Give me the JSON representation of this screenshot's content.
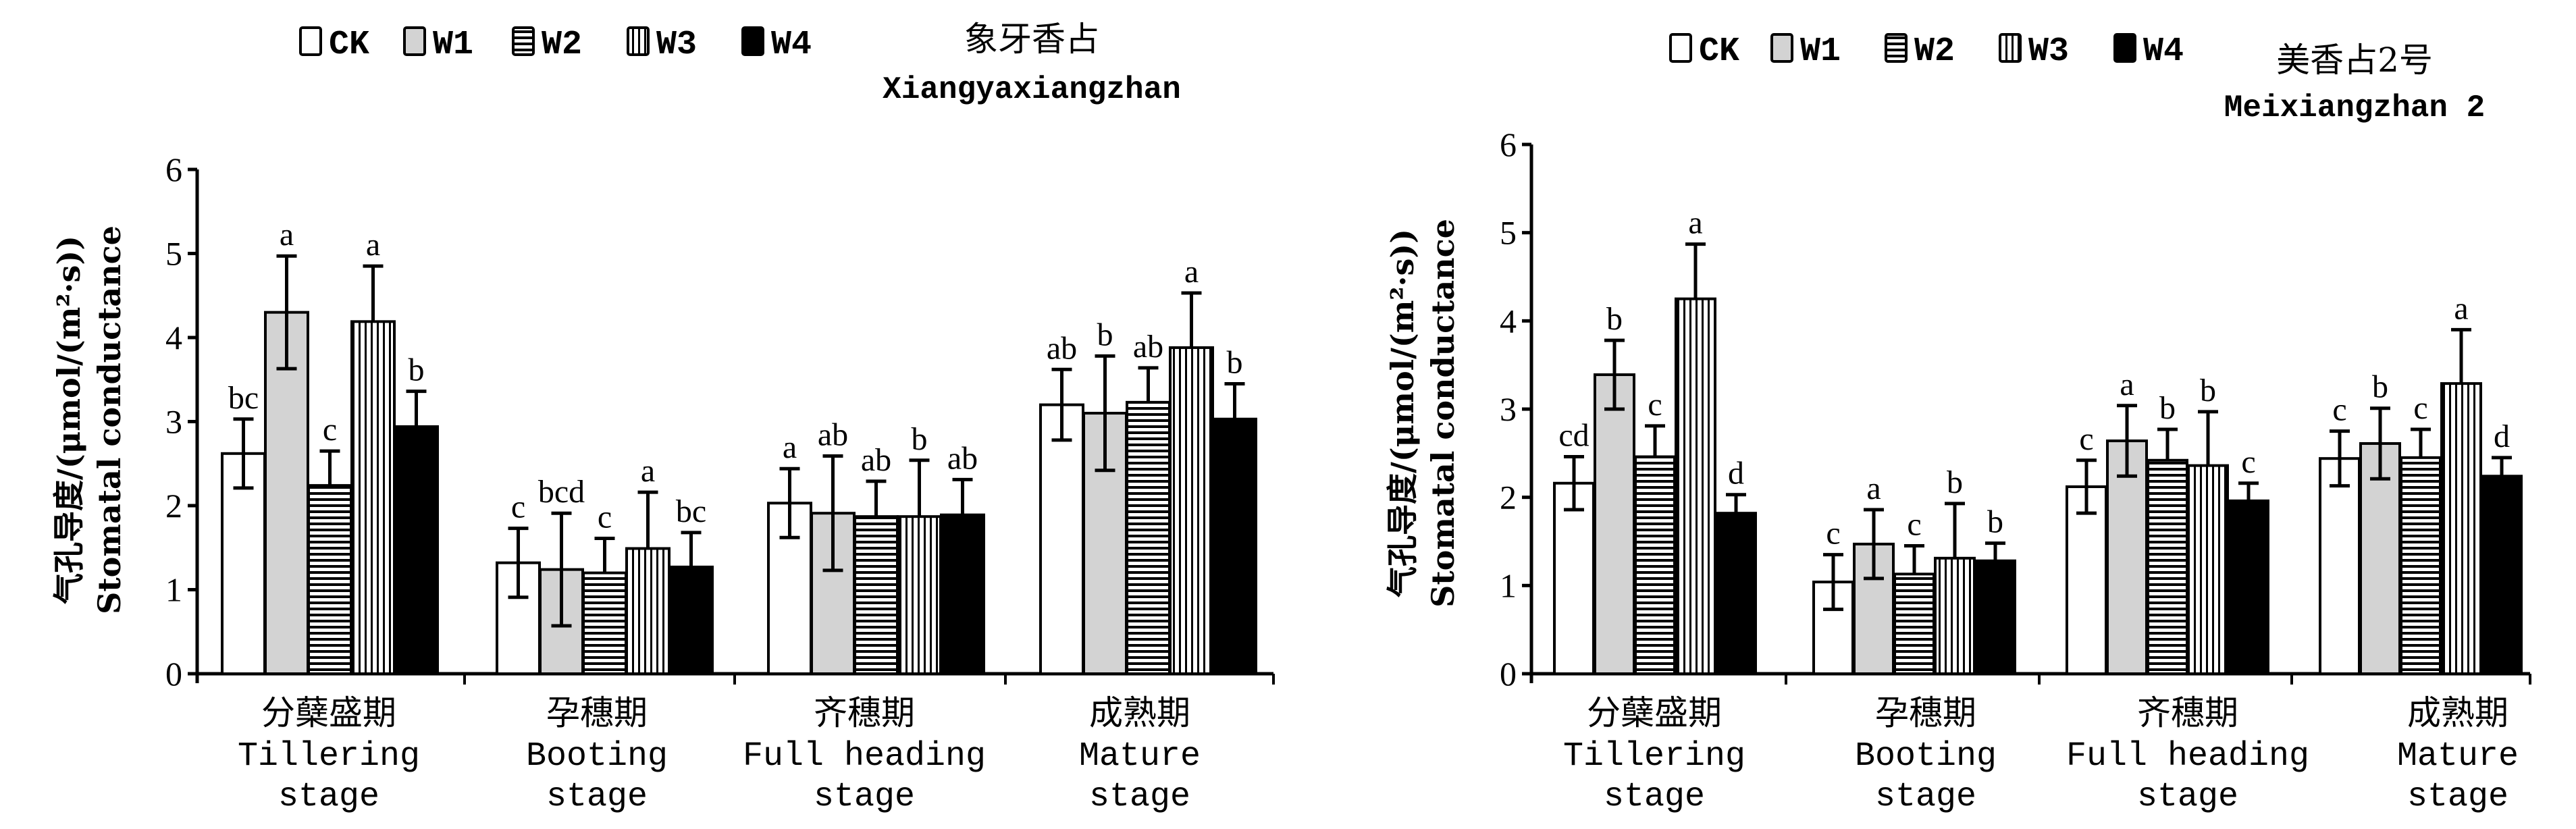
{
  "chart_data": [
    {
      "type": "bar",
      "title": "象牙香占",
      "subtitle": "Xiangyaxiangzhan",
      "ylabel_cn": "气孔导度/(μmol/(m²·s))",
      "ylabel_en": "Stomatal conductance",
      "xlabel": "",
      "ylim": [
        0,
        6
      ],
      "yticks": [
        0,
        1,
        2,
        3,
        4,
        5,
        6
      ],
      "legend_position": "top",
      "categories": [
        {
          "cn": "分蘖盛期",
          "en1": "Tillering",
          "en2": "stage"
        },
        {
          "cn": "孕穗期",
          "en1": "Booting",
          "en2": "stage"
        },
        {
          "cn": "齐穗期",
          "en1": "Full heading",
          "en2": "stage"
        },
        {
          "cn": "成熟期",
          "en1": "Mature",
          "en2": "stage"
        }
      ],
      "series": [
        {
          "name": "CK",
          "values": [
            2.62,
            1.32,
            2.03,
            3.2
          ],
          "error": [
            0.41,
            0.41,
            0.41,
            0.42
          ],
          "letters": [
            "bc",
            "c",
            "a",
            "ab"
          ]
        },
        {
          "name": "W1",
          "values": [
            4.3,
            1.24,
            1.91,
            3.1
          ],
          "error": [
            0.67,
            0.67,
            0.68,
            0.68
          ],
          "letters": [
            "a",
            "bcd",
            "ab",
            "b"
          ]
        },
        {
          "name": "W2",
          "values": [
            2.24,
            1.2,
            1.87,
            3.23
          ],
          "error": [
            0.41,
            0.41,
            0.42,
            0.41
          ],
          "letters": [
            "c",
            "c",
            "ab",
            "ab"
          ]
        },
        {
          "name": "W3",
          "values": [
            4.19,
            1.49,
            1.87,
            3.88
          ],
          "error": [
            0.66,
            0.67,
            0.67,
            0.65
          ],
          "letters": [
            "a",
            "a",
            "b",
            "a"
          ]
        },
        {
          "name": "W4",
          "values": [
            2.94,
            1.27,
            1.89,
            3.03
          ],
          "error": [
            0.42,
            0.41,
            0.42,
            0.42
          ],
          "letters": [
            "b",
            "bc",
            "ab",
            "b"
          ]
        }
      ]
    },
    {
      "type": "bar",
      "title": "美香占2号",
      "subtitle": "Meixiangzhan 2",
      "ylabel_cn": "气孔导度/(μmol/(m²·s))",
      "ylabel_en": "Stomatal conductance",
      "xlabel": "",
      "ylim": [
        0,
        6
      ],
      "yticks": [
        0,
        1,
        2,
        3,
        4,
        5,
        6
      ],
      "legend_position": "top",
      "categories": [
        {
          "cn": "分蘖盛期",
          "en1": "Tillering",
          "en2": "stage"
        },
        {
          "cn": "孕穗期",
          "en1": "Booting",
          "en2": "stage"
        },
        {
          "cn": "齐穗期",
          "en1": "Full heading",
          "en2": "stage"
        },
        {
          "cn": "成熟期",
          "en1": "Mature",
          "en2": "stage"
        }
      ],
      "series": [
        {
          "name": "CK",
          "values": [
            2.16,
            1.04,
            2.12,
            2.44
          ],
          "error": [
            0.3,
            0.31,
            0.3,
            0.31
          ],
          "letters": [
            "cd",
            "c",
            "c",
            "c"
          ]
        },
        {
          "name": "W1",
          "values": [
            3.39,
            1.47,
            2.64,
            2.61
          ],
          "error": [
            0.39,
            0.39,
            0.4,
            0.4
          ],
          "letters": [
            "b",
            "a",
            "a",
            "b"
          ]
        },
        {
          "name": "W2",
          "values": [
            2.46,
            1.13,
            2.42,
            2.45
          ],
          "error": [
            0.35,
            0.32,
            0.35,
            0.32
          ],
          "letters": [
            "c",
            "c",
            "b",
            "c"
          ]
        },
        {
          "name": "W3",
          "values": [
            4.25,
            1.31,
            2.36,
            3.29
          ],
          "error": [
            0.62,
            0.62,
            0.61,
            0.61
          ],
          "letters": [
            "a",
            "b",
            "b",
            "a"
          ]
        },
        {
          "name": "W4",
          "values": [
            1.82,
            1.28,
            1.96,
            2.24
          ],
          "error": [
            0.21,
            0.2,
            0.2,
            0.21
          ],
          "letters": [
            "d",
            "b",
            "c",
            "d"
          ]
        }
      ]
    }
  ],
  "legend": [
    {
      "name": "CK",
      "pattern": "white"
    },
    {
      "name": "W1",
      "pattern": "grey"
    },
    {
      "name": "W2",
      "pattern": "horizontal-stripes"
    },
    {
      "name": "W3",
      "pattern": "vertical-stripes"
    },
    {
      "name": "W4",
      "pattern": "black"
    }
  ],
  "colors": {
    "CK": "#ffffff",
    "W1": "#d3d3d3",
    "W4": "#000000",
    "stroke": "#000000"
  }
}
